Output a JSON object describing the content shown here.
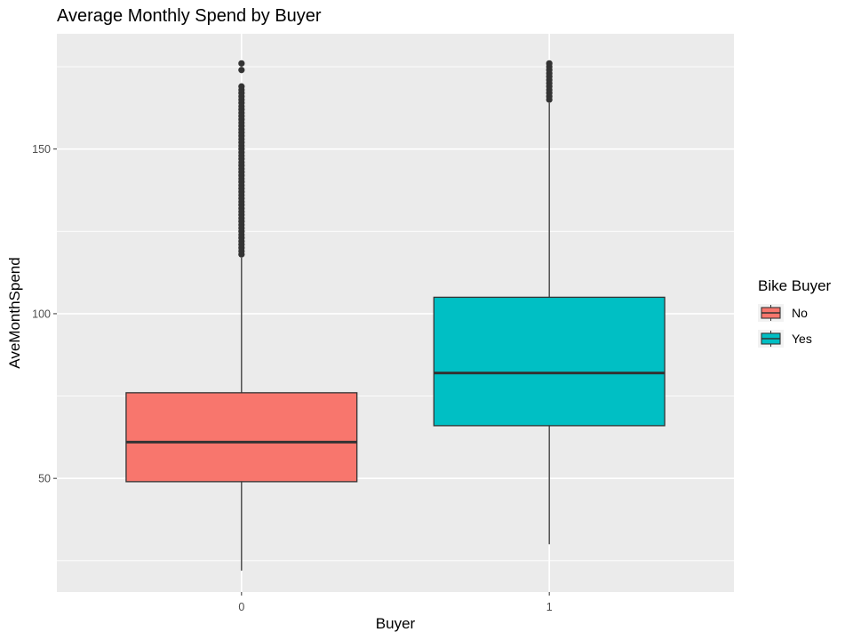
{
  "chart_data": {
    "type": "boxplot",
    "title": "Average Monthly Spend by Buyer",
    "xlabel": "Buyer",
    "ylabel": "AveMonthSpend",
    "categories": [
      "0",
      "1"
    ],
    "y_ticks": [
      50,
      100,
      150
    ],
    "ylim": [
      15.5,
      185
    ],
    "grid": true,
    "legend": {
      "title": "Bike Buyer",
      "position": "right",
      "entries": [
        {
          "label": "No",
          "color": "#F8766D"
        },
        {
          "label": "Yes",
          "color": "#00BFC4"
        }
      ]
    },
    "boxes": [
      {
        "category": "0",
        "legend": "No",
        "color": "#F8766D",
        "whisker_low": 22,
        "q1": 49,
        "median": 61,
        "q3": 76,
        "whisker_high": 117,
        "outliers": [
          118,
          119,
          120,
          121,
          122,
          123,
          124,
          125,
          126,
          127,
          128,
          129,
          130,
          131,
          132,
          133,
          134,
          135,
          136,
          137,
          138,
          139,
          140,
          141,
          142,
          143,
          144,
          145,
          146,
          147,
          148,
          149,
          150,
          151,
          152,
          153,
          154,
          155,
          156,
          157,
          158,
          159,
          160,
          161,
          162,
          163,
          164,
          165,
          166,
          167,
          168,
          169,
          174,
          176
        ]
      },
      {
        "category": "1",
        "legend": "Yes",
        "color": "#00BFC4",
        "whisker_low": 30,
        "q1": 66,
        "median": 82,
        "q3": 105,
        "whisker_high": 164,
        "outliers": [
          165,
          166,
          167,
          168,
          169,
          170,
          171,
          172,
          173,
          174,
          175,
          176
        ]
      }
    ]
  }
}
